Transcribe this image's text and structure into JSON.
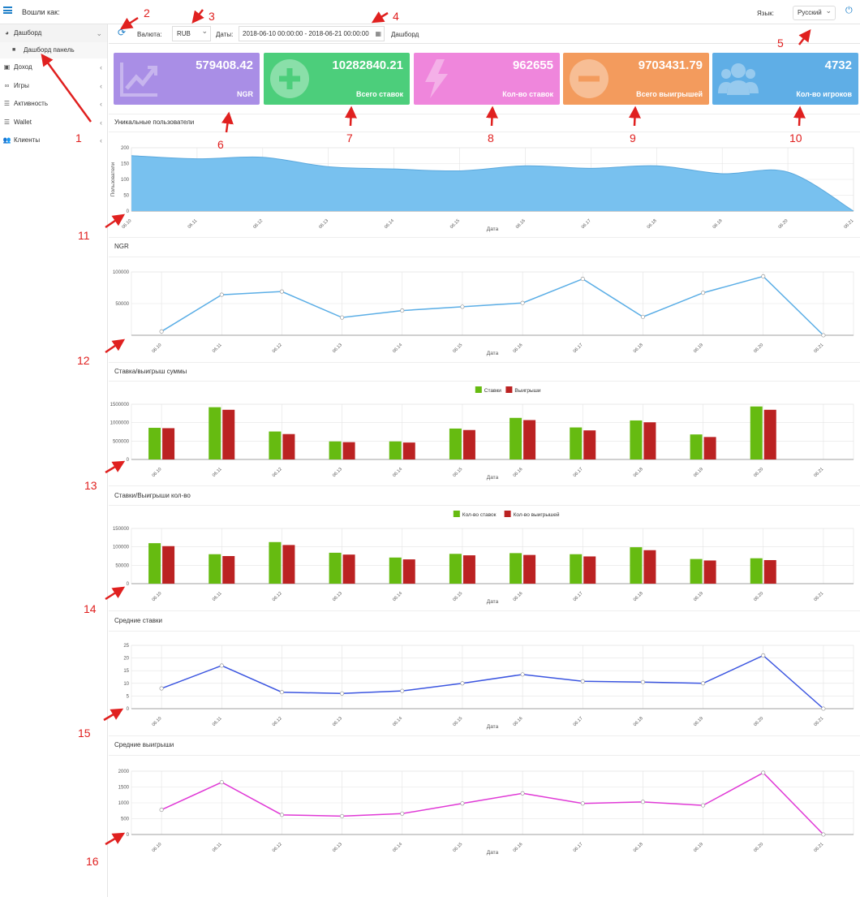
{
  "topbar": {
    "logged_as": "Вошли как:",
    "lang_label": "Язык:",
    "lang_value": "Русский"
  },
  "sidebar": {
    "items": [
      {
        "label": "Дашборд",
        "icon": "dashboard-icon"
      },
      {
        "label": "Доход",
        "icon": "money-icon"
      },
      {
        "label": "Игры",
        "icon": "gamepad-icon"
      },
      {
        "label": "Активность",
        "icon": "list-icon"
      },
      {
        "label": "Wallet",
        "icon": "list-icon"
      },
      {
        "label": "Клиенты",
        "icon": "users-icon"
      }
    ],
    "sub_item": "Дашборд панель"
  },
  "toolbar": {
    "currency_label": "Валюта:",
    "currency_value": "RUB",
    "dates_label": "Даты:",
    "dates_value": "2018-06-10 00:00:00 - 2018-06-21 00:00:00",
    "dashboard_button": "Дашборд"
  },
  "cards": [
    {
      "value": "579408.42",
      "label": "NGR",
      "color": "#a98ee6"
    },
    {
      "value": "10282840.21",
      "label": "Всего ставок",
      "color": "#4cce7b"
    },
    {
      "value": "962655",
      "label": "Кол-во ставок",
      "color": "#ef86dc"
    },
    {
      "value": "9703431.79",
      "label": "Всего выигрышей",
      "color": "#f39b5d"
    },
    {
      "value": "4732",
      "label": "Кол-во игроков",
      "color": "#5faee6"
    }
  ],
  "annotations": [
    "1",
    "2",
    "3",
    "4",
    "5",
    "6",
    "7",
    "8",
    "9",
    "10",
    "11",
    "12",
    "13",
    "14",
    "15",
    "16"
  ],
  "chart_data": [
    {
      "type": "area",
      "title": "Уникальные пользователи",
      "xlabel": "Дата",
      "ylabel": "Пользователи",
      "x": [
        "06.10",
        "06.11",
        "06.12",
        "06.13",
        "06.14",
        "06.15",
        "06.16",
        "06.17",
        "06.18",
        "06.19",
        "06.20",
        "06.21"
      ],
      "values": [
        175,
        165,
        170,
        140,
        133,
        127,
        143,
        135,
        143,
        118,
        123,
        0
      ],
      "ylim": [
        0,
        200
      ],
      "yticks": [
        0,
        50,
        100,
        150,
        200
      ],
      "color": "#78c1ef"
    },
    {
      "type": "line",
      "title": "NGR",
      "xlabel": "Дата",
      "x": [
        "06.10",
        "06.11",
        "06.12",
        "06.13",
        "06.14",
        "06.15",
        "06.16",
        "06.17",
        "06.18",
        "06.19",
        "06.20",
        "06.21"
      ],
      "values": [
        6000,
        64000,
        69000,
        28000,
        39000,
        45000,
        51000,
        89000,
        29000,
        67000,
        93000,
        0
      ],
      "ylim": [
        0,
        100000
      ],
      "yticks": [
        50000,
        100000
      ],
      "color": "#5baee6"
    },
    {
      "type": "bar",
      "title": "Ставка/выигрыш суммы",
      "xlabel": "Дата",
      "x": [
        "06.10",
        "06.11",
        "06.12",
        "06.13",
        "06.14",
        "06.15",
        "06.16",
        "06.17",
        "06.18",
        "06.19",
        "06.20",
        "06.21"
      ],
      "series": [
        {
          "name": "Ставки",
          "color": "#66bb11",
          "values": [
            860000,
            1420000,
            760000,
            490000,
            490000,
            840000,
            1130000,
            870000,
            1060000,
            680000,
            1440000,
            0
          ]
        },
        {
          "name": "Выигрыши",
          "color": "#bb2222",
          "values": [
            850000,
            1350000,
            690000,
            470000,
            460000,
            800000,
            1070000,
            790000,
            1010000,
            610000,
            1350000,
            0
          ]
        }
      ],
      "ylim": [
        0,
        1500000
      ],
      "yticks": [
        0,
        500000,
        1000000,
        1500000
      ]
    },
    {
      "type": "bar",
      "title": "Ставки/Выигрыши кол-во",
      "xlabel": "Дата",
      "x": [
        "06.10",
        "06.11",
        "06.12",
        "06.13",
        "06.14",
        "06.15",
        "06.16",
        "06.17",
        "06.18",
        "06.19",
        "06.20",
        "06.21"
      ],
      "series": [
        {
          "name": "Кол-во ставок",
          "color": "#66bb11",
          "values": [
            110000,
            80000,
            113000,
            84000,
            71000,
            81000,
            83000,
            80000,
            99000,
            67000,
            69000,
            0
          ]
        },
        {
          "name": "Кол-во выигрышей",
          "color": "#bb2222",
          "values": [
            102000,
            75000,
            105000,
            79000,
            66000,
            77000,
            78000,
            74000,
            91000,
            63000,
            64000,
            0
          ]
        }
      ],
      "ylim": [
        0,
        150000
      ],
      "yticks": [
        0,
        50000,
        100000,
        150000
      ]
    },
    {
      "type": "line",
      "title": "Средние ставки",
      "xlabel": "Дата",
      "x": [
        "06.10",
        "06.11",
        "06.12",
        "06.13",
        "06.14",
        "06.15",
        "06.16",
        "06.17",
        "06.18",
        "06.19",
        "06.20",
        "06.21"
      ],
      "values": [
        8,
        17,
        6.5,
        6,
        7,
        10,
        13.5,
        10.8,
        10.5,
        10,
        21,
        0
      ],
      "ylim": [
        0,
        25
      ],
      "yticks": [
        0,
        5,
        10,
        15,
        20,
        25
      ],
      "color": "#3b55e0"
    },
    {
      "type": "line",
      "title": "Средние выигрыши",
      "xlabel": "Дата",
      "x": [
        "06.10",
        "06.11",
        "06.12",
        "06.13",
        "06.14",
        "06.15",
        "06.16",
        "06.17",
        "06.18",
        "06.19",
        "06.20",
        "06.21"
      ],
      "values": [
        780,
        1650,
        620,
        580,
        660,
        980,
        1300,
        980,
        1030,
        920,
        1950,
        0
      ],
      "ylim": [
        0,
        2000
      ],
      "yticks": [
        0,
        500,
        1000,
        1500,
        2000
      ],
      "color": "#e03ad6"
    }
  ]
}
